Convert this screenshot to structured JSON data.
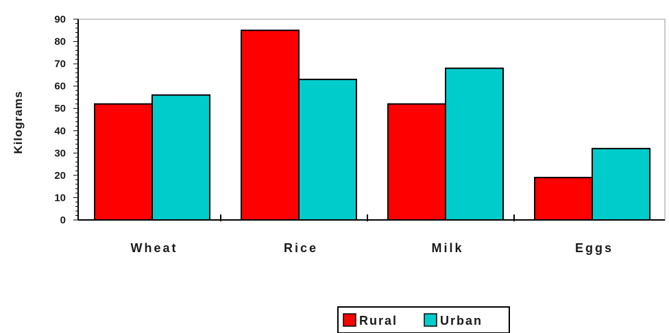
{
  "chart_data": {
    "type": "bar",
    "title": "",
    "xlabel": "",
    "ylabel": "Kilograms",
    "ylim": [
      0,
      90
    ],
    "yticks": [
      0,
      10,
      20,
      30,
      40,
      50,
      60,
      70,
      80,
      90
    ],
    "categories": [
      "Wheat",
      "Rice",
      "Milk",
      "Eggs"
    ],
    "series": [
      {
        "name": "Rural",
        "color": "#ff0000",
        "values": [
          52,
          85,
          52,
          19
        ]
      },
      {
        "name": "Urban",
        "color": "#00cccc",
        "values": [
          56,
          63,
          68,
          32
        ]
      }
    ],
    "grid": false,
    "legend_position": "bottom-center"
  }
}
